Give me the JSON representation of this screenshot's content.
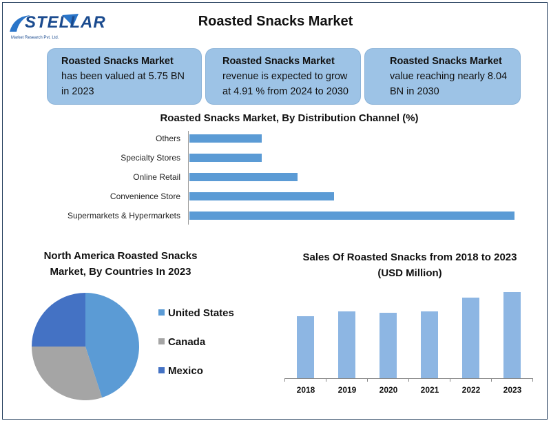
{
  "header": {
    "logo_text": "STELLAR",
    "logo_subtext": "Market Research Pvt. Ltd.",
    "title": "Roasted Snacks Market"
  },
  "cards": [
    {
      "heading": "Roasted Snacks Market",
      "line1": "has been valued at 5.75 BN",
      "line2": "in 2023"
    },
    {
      "heading": "Roasted Snacks Market",
      "line1": "revenue is expected to grow",
      "line2": "at 4.91 % from 2024 to 2030"
    },
    {
      "heading": "Roasted Snacks Market",
      "line1": "value reaching nearly 8.04",
      "line2": "BN in 2030"
    }
  ],
  "colors": {
    "card_bg": "#9dc3e6",
    "bar_blue": "#5b9bd5",
    "sales_bar": "#8db6e3",
    "pie_us": "#5b9bd5",
    "pie_canada": "#a5a5a5",
    "pie_mexico": "#4472c4"
  },
  "chart_data": [
    {
      "type": "bar",
      "orientation": "horizontal",
      "title": "Roasted Snacks Market, By Distribution Channel (%)",
      "categories": [
        "Others",
        "Specialty Stores",
        "Online Retail",
        "Convenience Store",
        "Supermarkets & Hypermarkets"
      ],
      "values": [
        10,
        10,
        15,
        20,
        45
      ],
      "xlim": [
        0,
        45
      ]
    },
    {
      "type": "pie",
      "title": "North America Roasted Snacks Market, By Countries In 2023",
      "categories": [
        "United States",
        "Canada",
        "Mexico"
      ],
      "values": [
        45,
        30,
        25
      ],
      "legend": "right"
    },
    {
      "type": "bar",
      "title": "Sales Of Roasted Snacks from 2018 to 2023 (USD Million)",
      "categories": [
        "2018",
        "2019",
        "2020",
        "2021",
        "2022",
        "2023"
      ],
      "values": [
        83,
        89,
        88,
        89,
        108,
        115
      ],
      "ylim": [
        0,
        130
      ],
      "grid": false
    }
  ]
}
